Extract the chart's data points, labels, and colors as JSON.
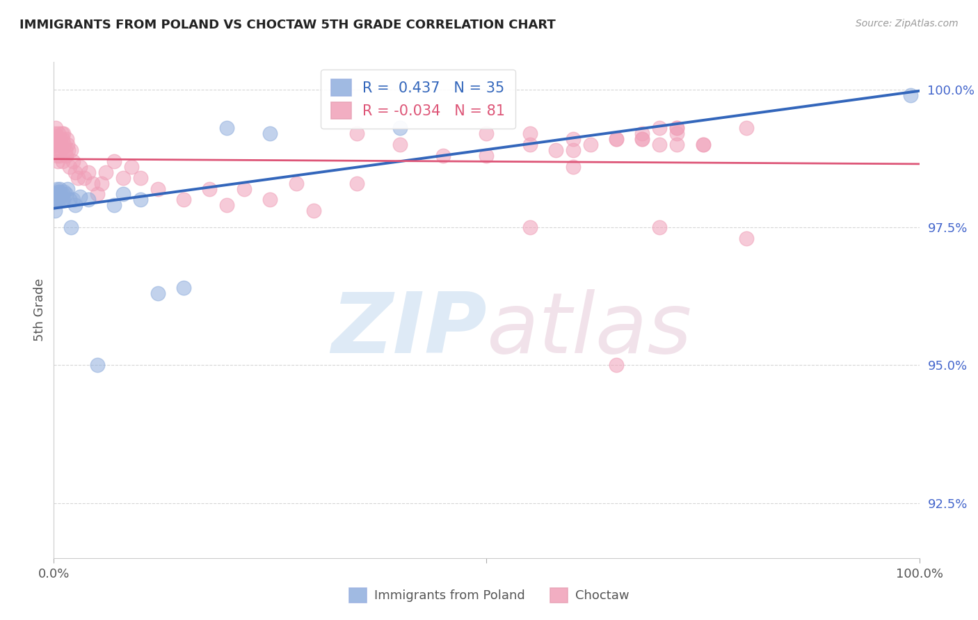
{
  "title": "IMMIGRANTS FROM POLAND VS CHOCTAW 5TH GRADE CORRELATION CHART",
  "source": "Source: ZipAtlas.com",
  "ylabel": "5th Grade",
  "legend_series": [
    {
      "label": "Immigrants from Poland",
      "R": 0.437,
      "N": 35
    },
    {
      "label": "Choctaw",
      "R": -0.034,
      "N": 81
    }
  ],
  "blue_x": [
    0.1,
    0.2,
    0.25,
    0.3,
    0.35,
    0.4,
    0.45,
    0.5,
    0.55,
    0.6,
    0.65,
    0.7,
    0.8,
    0.9,
    1.0,
    1.1,
    1.2,
    1.4,
    1.6,
    1.8,
    2.0,
    2.2,
    2.5,
    3.0,
    4.0,
    5.0,
    7.0,
    8.0,
    10.0,
    12.0,
    15.0,
    20.0,
    25.0,
    40.0,
    99.0
  ],
  "blue_y": [
    97.8,
    98.0,
    98.1,
    98.0,
    98.2,
    98.1,
    98.0,
    98.15,
    98.1,
    98.0,
    98.15,
    98.2,
    98.1,
    98.0,
    98.1,
    98.0,
    98.15,
    98.1,
    98.2,
    98.0,
    97.5,
    98.0,
    97.9,
    98.05,
    98.0,
    95.0,
    97.9,
    98.1,
    98.0,
    96.3,
    96.4,
    99.3,
    99.2,
    99.3,
    99.9
  ],
  "pink_x": [
    0.1,
    0.15,
    0.2,
    0.25,
    0.3,
    0.35,
    0.4,
    0.45,
    0.5,
    0.55,
    0.6,
    0.65,
    0.7,
    0.75,
    0.8,
    0.85,
    0.9,
    1.0,
    1.0,
    1.1,
    1.2,
    1.3,
    1.4,
    1.5,
    1.6,
    1.7,
    1.8,
    2.0,
    2.2,
    2.5,
    2.8,
    3.0,
    3.5,
    4.0,
    4.5,
    5.0,
    5.5,
    6.0,
    7.0,
    8.0,
    9.0,
    10.0,
    12.0,
    15.0,
    18.0,
    20.0,
    22.0,
    25.0,
    28.0,
    30.0,
    35.0,
    40.0,
    50.0,
    60.0,
    70.0,
    75.0,
    60.0,
    65.0,
    55.0,
    45.0,
    35.0,
    70.0,
    72.0,
    65.0,
    58.0,
    68.0,
    55.0,
    72.0,
    68.0,
    50.0,
    62.0,
    72.0,
    68.0,
    72.0,
    75.0,
    80.0,
    60.0,
    55.0,
    70.0,
    65.0,
    80.0
  ],
  "pink_y": [
    99.0,
    99.2,
    99.1,
    99.3,
    99.0,
    98.8,
    99.15,
    98.7,
    99.1,
    99.2,
    98.9,
    99.0,
    98.8,
    99.1,
    99.0,
    98.9,
    99.2,
    98.7,
    99.1,
    99.2,
    99.0,
    98.9,
    98.8,
    99.1,
    99.0,
    98.9,
    98.6,
    98.9,
    98.7,
    98.5,
    98.4,
    98.6,
    98.4,
    98.5,
    98.3,
    98.1,
    98.3,
    98.5,
    98.7,
    98.4,
    98.6,
    98.4,
    98.2,
    98.0,
    98.2,
    97.9,
    98.2,
    98.0,
    98.3,
    97.8,
    98.3,
    99.0,
    99.2,
    99.1,
    99.3,
    99.0,
    98.9,
    99.1,
    99.0,
    98.8,
    99.2,
    99.0,
    99.3,
    99.1,
    98.9,
    99.1,
    99.2,
    99.0,
    99.2,
    98.8,
    99.0,
    99.3,
    99.1,
    99.2,
    99.0,
    99.3,
    98.6,
    97.5,
    97.5,
    95.0,
    97.3
  ],
  "xmin": 0.0,
  "xmax": 100.0,
  "ymin": 91.5,
  "ymax": 100.5,
  "yticks": [
    92.5,
    95.0,
    97.5,
    100.0
  ],
  "ytick_labels": [
    "92.5%",
    "95.0%",
    "97.5%",
    "100.0%"
  ],
  "blue_marker_color": "#90aedd",
  "pink_marker_color": "#f0a0b8",
  "blue_line_color": "#3366bb",
  "pink_line_color": "#dd5577",
  "bg_color": "#ffffff",
  "grid_color": "#cccccc",
  "title_color": "#222222",
  "label_color": "#555555",
  "right_tick_color": "#4466cc",
  "blue_legend_R": "0.437",
  "blue_legend_N": "35",
  "pink_legend_R": "-0.034",
  "pink_legend_N": "81"
}
